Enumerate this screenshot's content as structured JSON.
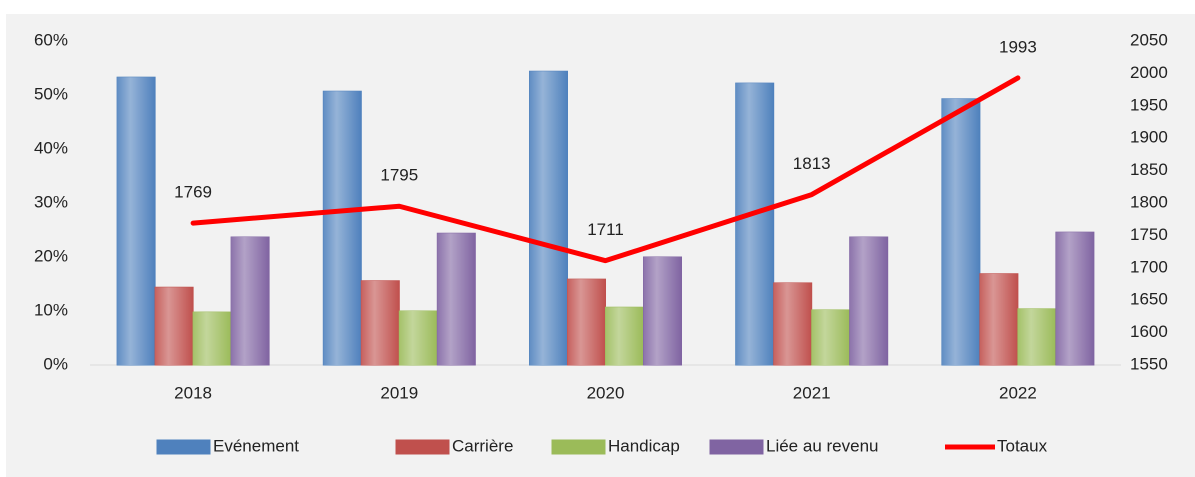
{
  "chart_data": {
    "type": "bar",
    "categories": [
      "2018",
      "2019",
      "2020",
      "2021",
      "2022"
    ],
    "series": [
      {
        "name": "Evénement",
        "color": "#4f81bd",
        "values": [
          53.3,
          50.7,
          54.4,
          52.2,
          49.3
        ]
      },
      {
        "name": "Carrière",
        "color": "#c0504d",
        "values": [
          14.4,
          15.6,
          15.9,
          15.2,
          16.9
        ]
      },
      {
        "name": "Handicap",
        "color": "#9bbb59",
        "values": [
          9.8,
          10,
          10.7,
          10.2,
          10.4
        ]
      },
      {
        "name": "Liée au revenu",
        "color": "#8064a2",
        "values": [
          23.7,
          24.4,
          20,
          23.7,
          24.6
        ]
      },
      {
        "name": "Totaux",
        "color": "#ff0000",
        "type": "line",
        "axis": "y2",
        "values": [
          1769,
          1795,
          1711,
          1813,
          1993
        ]
      }
    ],
    "ylim": [
      0,
      60
    ],
    "yticks": [
      {
        "value": 0,
        "label": "0%"
      },
      {
        "value": 10,
        "label": "10%"
      },
      {
        "value": 20,
        "label": "20%"
      },
      {
        "value": 30,
        "label": "30%"
      },
      {
        "value": 40,
        "label": "40%"
      },
      {
        "value": 50,
        "label": "50%"
      },
      {
        "value": 60,
        "label": "60%"
      }
    ],
    "y2lim": [
      1550,
      2050
    ],
    "y2ticks": [
      1550,
      1600,
      1650,
      1700,
      1750,
      1800,
      1850,
      1900,
      1950,
      2000,
      2050
    ],
    "legend": "bottom"
  }
}
